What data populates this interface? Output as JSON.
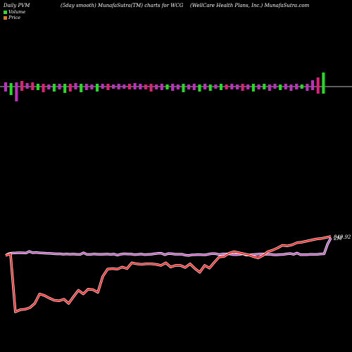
{
  "header": {
    "left": "Daily PVM",
    "middle": "(5day smooth) MunafaSutra(TM) charts for WCG",
    "right": "(WellCare  Health Plans, Inc.) MunafaSutra.com"
  },
  "legend": {
    "volume": {
      "label": "Volume",
      "color": "#2adf2a"
    },
    "price": {
      "label": "Price",
      "color": "#e0791c"
    }
  },
  "chart_data": [
    {
      "type": "bar",
      "title": "Volume",
      "colors": {
        "up": "#c030c0",
        "down": "#22dd22",
        "alt": "#e0207a"
      },
      "bars": [
        {
          "up": 0.3,
          "down": 0.35,
          "c": "up"
        },
        {
          "up": 0.25,
          "down": 0.6,
          "c": "down"
        },
        {
          "up": 0.3,
          "down": 1.05,
          "c": "up"
        },
        {
          "up": 0.4,
          "down": 0.3,
          "c": "alt"
        },
        {
          "up": 0.25,
          "down": 0.15,
          "c": "up"
        },
        {
          "up": 0.3,
          "down": 0.25,
          "c": "alt"
        },
        {
          "up": 0.2,
          "down": 0.25,
          "c": "down"
        },
        {
          "up": 0.2,
          "down": 0.4,
          "c": "alt"
        },
        {
          "up": 0.15,
          "down": 0.2,
          "c": "up"
        },
        {
          "up": 0.2,
          "down": 0.35,
          "c": "down"
        },
        {
          "up": 0.2,
          "down": 0.2,
          "c": "up"
        },
        {
          "up": 0.2,
          "down": 0.45,
          "c": "down"
        },
        {
          "up": 0.2,
          "down": 0.35,
          "c": "alt"
        },
        {
          "up": 0.25,
          "down": 0.2,
          "c": "up"
        },
        {
          "up": 0.2,
          "down": 0.4,
          "c": "down"
        },
        {
          "up": 0.2,
          "down": 0.25,
          "c": "up"
        },
        {
          "up": 0.15,
          "down": 0.2,
          "c": "up"
        },
        {
          "up": 0.2,
          "down": 0.35,
          "c": "down"
        },
        {
          "up": 0.2,
          "down": 0.15,
          "c": "up"
        },
        {
          "up": 0.2,
          "down": 0.25,
          "c": "alt"
        },
        {
          "up": 0.15,
          "down": 0.15,
          "c": "up"
        },
        {
          "up": 0.2,
          "down": 0.2,
          "c": "up"
        },
        {
          "up": 0.15,
          "down": 0.15,
          "c": "up"
        },
        {
          "up": 0.2,
          "down": 0.2,
          "c": "alt"
        },
        {
          "up": 0.25,
          "down": 0.2,
          "c": "up"
        },
        {
          "up": 0.2,
          "down": 0.2,
          "c": "up"
        },
        {
          "up": 0.15,
          "down": 0.2,
          "c": "alt"
        },
        {
          "up": 0.2,
          "down": 0.35,
          "c": "alt"
        },
        {
          "up": 0.15,
          "down": 0.2,
          "c": "up"
        },
        {
          "up": 0.2,
          "down": 0.25,
          "c": "up"
        },
        {
          "up": 0.15,
          "down": 0.2,
          "c": "down"
        },
        {
          "up": 0.2,
          "down": 0.3,
          "c": "up"
        },
        {
          "up": 0.15,
          "down": 0.2,
          "c": "up"
        },
        {
          "up": 0.2,
          "down": 0.4,
          "c": "down"
        },
        {
          "up": 0.15,
          "down": 0.2,
          "c": "up"
        },
        {
          "up": 0.2,
          "down": 0.25,
          "c": "up"
        },
        {
          "up": 0.15,
          "down": 0.35,
          "c": "down"
        },
        {
          "up": 0.2,
          "down": 0.2,
          "c": "up"
        },
        {
          "up": 0.15,
          "down": 0.3,
          "c": "down"
        },
        {
          "up": 0.15,
          "down": 0.15,
          "c": "up"
        },
        {
          "up": 0.2,
          "down": 0.25,
          "c": "down"
        },
        {
          "up": 0.15,
          "down": 0.2,
          "c": "alt"
        },
        {
          "up": 0.2,
          "down": 0.2,
          "c": "up"
        },
        {
          "up": 0.15,
          "down": 0.2,
          "c": "up"
        },
        {
          "up": 0.2,
          "down": 0.3,
          "c": "alt"
        },
        {
          "up": 0.15,
          "down": 0.2,
          "c": "up"
        },
        {
          "up": 0.2,
          "down": 0.35,
          "c": "down"
        },
        {
          "up": 0.15,
          "down": 0.2,
          "c": "up"
        },
        {
          "up": 0.2,
          "down": 0.2,
          "c": "down"
        },
        {
          "up": 0.15,
          "down": 0.3,
          "c": "up"
        },
        {
          "up": 0.2,
          "down": 0.15,
          "c": "up"
        },
        {
          "up": 0.15,
          "down": 0.25,
          "c": "down"
        },
        {
          "up": 0.2,
          "down": 0.2,
          "c": "up"
        },
        {
          "up": 0.15,
          "down": 0.3,
          "c": "up"
        },
        {
          "up": 0.2,
          "down": 0.2,
          "c": "up"
        },
        {
          "up": 0.15,
          "down": 0.15,
          "c": "down"
        },
        {
          "up": 0.2,
          "down": 0.3,
          "c": "up"
        },
        {
          "up": 0.45,
          "down": 0.25,
          "c": "up"
        },
        {
          "up": 0.65,
          "down": 0.5,
          "c": "alt"
        },
        {
          "up": 1.0,
          "down": 0.5,
          "c": "down"
        }
      ]
    },
    {
      "type": "line",
      "title": "Price",
      "series": [
        {
          "color": "#c040c0",
          "values": [
            0.55,
            0.72,
            0.77,
            0.78,
            0.8,
            0.79,
            0.77,
            0.93,
            0.8,
            0.83,
            0.79,
            0.77,
            0.75,
            0.74,
            0.72,
            0.69,
            0.7,
            0.66,
            0.68,
            0.66,
            0.67,
            0.65,
            0.64,
            0.79,
            0.64,
            0.64,
            0.68,
            0.66,
            0.65,
            0.66,
            0.67,
            0.64,
            0.67,
            0.57,
            0.66,
            0.7,
            0.67,
            0.67,
            0.62,
            0.64,
            0.67,
            0.62,
            0.64,
            0.66,
            0.71,
            0.75,
            0.75,
            0.61,
            0.73,
            0.71,
            0.66,
            0.66,
            0.66,
            0.57,
            0.54,
            0.6,
            0.61,
            0.63,
            0.61,
            0.6,
            0.67,
            0.72,
            0.71,
            0.63,
            0.68,
            0.68,
            0.7,
            0.63,
            0.62,
            0.64,
            0.7,
            0.57,
            0.59,
            0.63,
            0.65,
            0.67,
            0.68,
            0.65,
            0.66,
            0.61,
            0.6,
            0.63,
            0.64,
            0.69,
            0.73,
            0.65,
            0.77,
            0.62,
            0.62,
            0.62,
            0.65,
            0.64,
            0.65,
            0.68,
            0.7,
            1.6,
            2.2
          ],
          "end_label": "2M"
        },
        {
          "color": "#ff2a2a",
          "values": [
            0.55,
            0.7,
            -4.8,
            -4.6,
            -4.55,
            -4.4,
            -4.0,
            -3.1,
            -3.25,
            -3.5,
            -3.7,
            -3.75,
            -3.6,
            -4.0,
            -3.35,
            -2.75,
            -3.1,
            -2.65,
            -2.7,
            -2.95,
            -1.45,
            -0.75,
            -0.7,
            -0.75,
            -0.55,
            -0.7,
            -0.15,
            -0.25,
            -0.3,
            -0.25,
            -0.25,
            -0.3,
            -0.4,
            -0.15,
            -0.55,
            -0.4,
            -0.4,
            -0.6,
            -0.25,
            -0.7,
            -1.05,
            -0.4,
            -0.65,
            -0.1,
            0.4,
            0.45,
            0.75,
            0.9,
            0.8,
            0.7,
            0.6,
            0.45,
            0.3,
            0.55,
            0.9,
            1.05,
            1.25,
            1.5,
            1.45,
            1.55,
            1.75,
            1.8,
            1.9,
            2.0,
            2.1,
            2.15,
            2.25,
            2.35
          ],
          "end_label": "849.92"
        }
      ]
    }
  ]
}
